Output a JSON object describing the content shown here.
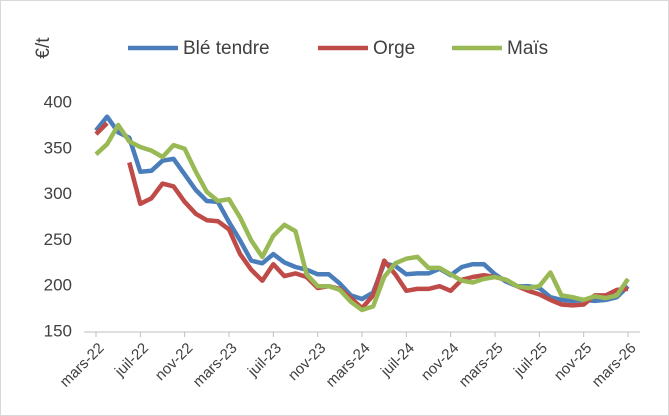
{
  "chart_data": {
    "type": "line",
    "ylabel": "€/t",
    "categories": [
      "mars-22",
      null,
      null,
      null,
      "juil-22",
      null,
      null,
      null,
      "nov-22",
      null,
      null,
      null,
      "mars-23",
      null,
      null,
      null,
      "juil-23",
      null,
      null,
      null,
      "nov-23",
      null,
      null,
      null,
      "mars-24",
      null,
      null,
      null,
      "juil-24",
      null,
      null,
      null,
      "nov-24",
      null,
      null,
      null,
      "mars-25",
      null,
      null,
      null,
      "juil-25",
      null,
      null,
      null,
      "nov-25",
      null,
      null,
      null,
      "mars-26"
    ],
    "series": [
      {
        "name": "Blé tendre",
        "color": "#4a7ebb",
        "values": [
          370,
          385,
          368,
          362,
          325,
          326,
          337,
          339,
          322,
          305,
          293,
          292,
          270,
          250,
          228,
          225,
          235,
          226,
          221,
          218,
          213,
          213,
          203,
          190,
          186,
          193,
          225,
          222,
          213,
          214,
          214,
          219,
          212,
          221,
          224,
          224,
          213,
          205,
          200,
          200,
          198,
          188,
          185,
          184,
          185,
          184,
          185,
          188,
          200
        ]
      },
      {
        "name": "Orge",
        "color": "#be4b48",
        "values": [
          366,
          378,
          null,
          335,
          290,
          296,
          312,
          309,
          292,
          279,
          272,
          271,
          262,
          235,
          218,
          206,
          224,
          211,
          214,
          210,
          198,
          200,
          197,
          187,
          176,
          190,
          228,
          213,
          195,
          197,
          197,
          200,
          195,
          207,
          210,
          212,
          210,
          207,
          200,
          195,
          191,
          185,
          180,
          179,
          180,
          190,
          190,
          196,
          197
        ]
      },
      {
        "name": "Maïs",
        "color": "#98b954",
        "values": [
          344,
          355,
          376,
          358,
          352,
          348,
          341,
          354,
          350,
          325,
          303,
          293,
          295,
          275,
          250,
          232,
          255,
          267,
          260,
          213,
          200,
          200,
          196,
          183,
          174,
          178,
          210,
          225,
          230,
          232,
          220,
          220,
          213,
          206,
          204,
          208,
          210,
          207,
          200,
          198,
          200,
          215,
          190,
          188,
          185,
          189,
          187,
          190,
          208
        ]
      }
    ],
    "ylim": [
      150,
      400
    ],
    "yticks": [
      150,
      200,
      250,
      300,
      350,
      400
    ],
    "grid": false,
    "legend": "top"
  }
}
